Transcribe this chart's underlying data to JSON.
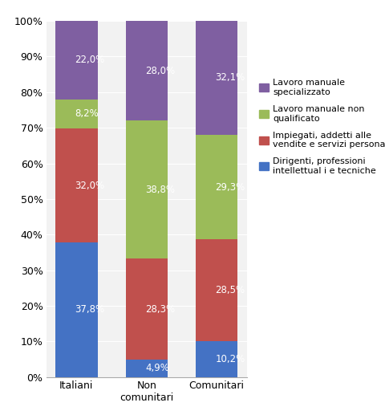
{
  "categories": [
    "Italiani",
    "Non\ncomunitari",
    "Comunitari"
  ],
  "series": [
    {
      "label": "Dirigenti, professioni\nintellettual i e tecniche",
      "legend_label": "Dirigenti, professioni\nintellettual i e tecniche",
      "values": [
        37.8,
        4.9,
        10.2
      ],
      "color": "#4472C4",
      "text_values": [
        "37,8%",
        "4,9%",
        "10,2%"
      ]
    },
    {
      "label": "Impiegati, addetti alle\nvendite e servizi personali",
      "legend_label": "Impiegati, addetti alle\nvendite e servizi personali",
      "values": [
        32.0,
        28.3,
        28.5
      ],
      "color": "#C0504D",
      "text_values": [
        "32,0%",
        "28,3%",
        "28,5%"
      ]
    },
    {
      "label": "Lavoro manuale non\nqualificato",
      "legend_label": "Lavoro manuale non\nqualificato",
      "values": [
        8.2,
        38.8,
        29.3
      ],
      "color": "#9BBB59",
      "text_values": [
        "8,2%",
        "38,8%",
        "29,3%"
      ]
    },
    {
      "label": "Lavoro manuale\nspecializzato",
      "legend_label": "Lavoro manuale\nspecializzato",
      "values": [
        22.0,
        28.0,
        32.1
      ],
      "color": "#7F5FA1",
      "text_values": [
        "22,0%",
        "28,0%",
        "32,1%"
      ]
    }
  ],
  "legend_labels": [
    "Lavoro manuale\nspecializzato",
    "Lavoro manuale non\nqualificato",
    "Impiegati, addetti alle\nvendite e servizi personali",
    "Dirigenti, professioni\nintellettual i e tecniche"
  ],
  "legend_colors": [
    "#7F5FA1",
    "#9BBB59",
    "#C0504D",
    "#4472C4"
  ],
  "ylim": [
    0,
    100
  ],
  "yticks": [
    0,
    10,
    20,
    30,
    40,
    50,
    60,
    70,
    80,
    90,
    100
  ],
  "ytick_labels": [
    "0%",
    "10%",
    "20%",
    "30%",
    "40%",
    "50%",
    "60%",
    "70%",
    "80%",
    "90%",
    "100%"
  ],
  "background_color": "#FFFFFF",
  "plot_bg_color": "#F2F2F2",
  "grid_color": "#FFFFFF",
  "bar_width": 0.6,
  "legend_fontsize": 8,
  "tick_fontsize": 9,
  "label_fontsize": 8.5,
  "figsize": [
    4.81,
    5.22
  ],
  "dpi": 100
}
